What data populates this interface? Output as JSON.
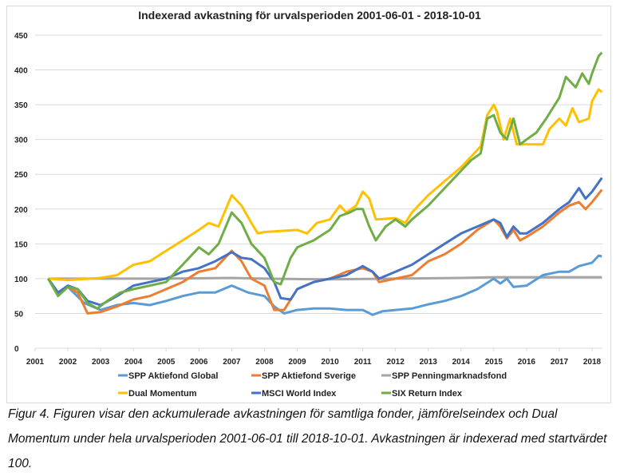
{
  "chart_data": {
    "type": "line",
    "title": "Indexerad avkastning för urvalsperioden 2001-06-01 - 2018-10-01",
    "xlabel": "",
    "ylabel": "",
    "ylim": [
      0,
      450
    ],
    "yticks": [
      0,
      50,
      100,
      150,
      200,
      250,
      300,
      350,
      400,
      450
    ],
    "xticks": [
      "2001",
      "2002",
      "2003",
      "2004",
      "2005",
      "2006",
      "2007",
      "2008",
      "2009",
      "2010",
      "2011",
      "2012",
      "2013",
      "2014",
      "2015",
      "2016",
      "2017",
      "2018"
    ],
    "grid": true,
    "legend_placement": "bottom",
    "series": [
      {
        "name": "SPP Aktiefond Global",
        "color": "#5b9bd5",
        "points": [
          [
            2001.4,
            100
          ],
          [
            2001.7,
            78
          ],
          [
            2002,
            88
          ],
          [
            2002.5,
            65
          ],
          [
            2003,
            55
          ],
          [
            2003.5,
            62
          ],
          [
            2004,
            65
          ],
          [
            2004.5,
            62
          ],
          [
            2005,
            68
          ],
          [
            2005.5,
            75
          ],
          [
            2006,
            80
          ],
          [
            2006.5,
            80
          ],
          [
            2007,
            90
          ],
          [
            2007.5,
            80
          ],
          [
            2008,
            75
          ],
          [
            2008.3,
            60
          ],
          [
            2008.6,
            50
          ],
          [
            2009,
            55
          ],
          [
            2009.5,
            57
          ],
          [
            2010,
            57
          ],
          [
            2010.5,
            55
          ],
          [
            2011,
            55
          ],
          [
            2011.3,
            48
          ],
          [
            2011.6,
            53
          ],
          [
            2012,
            55
          ],
          [
            2012.5,
            57
          ],
          [
            2013,
            63
          ],
          [
            2013.5,
            68
          ],
          [
            2014,
            75
          ],
          [
            2014.5,
            85
          ],
          [
            2015,
            100
          ],
          [
            2015.2,
            93
          ],
          [
            2015.4,
            100
          ],
          [
            2015.6,
            88
          ],
          [
            2016,
            90
          ],
          [
            2016.5,
            105
          ],
          [
            2017,
            110
          ],
          [
            2017.3,
            110
          ],
          [
            2017.6,
            118
          ],
          [
            2018,
            123
          ],
          [
            2018.2,
            133
          ],
          [
            2018.3,
            132
          ]
        ]
      },
      {
        "name": "SPP Aktiefond Sverige",
        "color": "#ed7d31",
        "points": [
          [
            2001.4,
            100
          ],
          [
            2001.7,
            78
          ],
          [
            2002,
            88
          ],
          [
            2002.3,
            80
          ],
          [
            2002.6,
            50
          ],
          [
            2003,
            52
          ],
          [
            2003.5,
            60
          ],
          [
            2004,
            70
          ],
          [
            2004.5,
            75
          ],
          [
            2005,
            85
          ],
          [
            2005.5,
            95
          ],
          [
            2006,
            110
          ],
          [
            2006.5,
            115
          ],
          [
            2007,
            140
          ],
          [
            2007.3,
            125
          ],
          [
            2007.6,
            100
          ],
          [
            2008,
            90
          ],
          [
            2008.3,
            55
          ],
          [
            2008.6,
            55
          ],
          [
            2009,
            85
          ],
          [
            2009.5,
            95
          ],
          [
            2010,
            100
          ],
          [
            2010.5,
            110
          ],
          [
            2011,
            115
          ],
          [
            2011.3,
            110
          ],
          [
            2011.5,
            95
          ],
          [
            2012,
            100
          ],
          [
            2012.5,
            105
          ],
          [
            2013,
            125
          ],
          [
            2013.5,
            135
          ],
          [
            2014,
            150
          ],
          [
            2014.5,
            170
          ],
          [
            2015,
            185
          ],
          [
            2015.2,
            175
          ],
          [
            2015.4,
            158
          ],
          [
            2015.6,
            170
          ],
          [
            2015.8,
            155
          ],
          [
            2016,
            160
          ],
          [
            2016.5,
            175
          ],
          [
            2017,
            195
          ],
          [
            2017.3,
            205
          ],
          [
            2017.6,
            210
          ],
          [
            2017.8,
            200
          ],
          [
            2018,
            210
          ],
          [
            2018.3,
            228
          ]
        ]
      },
      {
        "name": "SPP Penningmarknadsfond",
        "color": "#a5a5a5",
        "points": [
          [
            2001.4,
            100
          ],
          [
            2003.5,
            100
          ],
          [
            2005,
            100
          ],
          [
            2007,
            101
          ],
          [
            2008,
            100
          ],
          [
            2010,
            99
          ],
          [
            2012,
            100
          ],
          [
            2014,
            101
          ],
          [
            2015,
            102
          ],
          [
            2016,
            102
          ],
          [
            2018.3,
            102
          ]
        ]
      },
      {
        "name": "Dual Momentum",
        "color": "#ffc000",
        "points": [
          [
            2001.4,
            100
          ],
          [
            2002,
            98
          ],
          [
            2003,
            101
          ],
          [
            2003.5,
            105
          ],
          [
            2004,
            120
          ],
          [
            2004.5,
            125
          ],
          [
            2005,
            140
          ],
          [
            2005.5,
            155
          ],
          [
            2006,
            170
          ],
          [
            2006.3,
            180
          ],
          [
            2006.6,
            175
          ],
          [
            2007,
            220
          ],
          [
            2007.3,
            205
          ],
          [
            2007.6,
            180
          ],
          [
            2007.8,
            165
          ],
          [
            2008,
            167
          ],
          [
            2009,
            170
          ],
          [
            2009.3,
            165
          ],
          [
            2009.6,
            180
          ],
          [
            2010,
            185
          ],
          [
            2010.3,
            205
          ],
          [
            2010.5,
            195
          ],
          [
            2010.8,
            205
          ],
          [
            2011,
            225
          ],
          [
            2011.2,
            215
          ],
          [
            2011.4,
            185
          ],
          [
            2012,
            187
          ],
          [
            2012.3,
            180
          ],
          [
            2012.5,
            195
          ],
          [
            2013,
            220
          ],
          [
            2013.5,
            240
          ],
          [
            2014,
            260
          ],
          [
            2014.3,
            275
          ],
          [
            2014.6,
            290
          ],
          [
            2014.8,
            335
          ],
          [
            2015,
            350
          ],
          [
            2015.1,
            340
          ],
          [
            2015.3,
            300
          ],
          [
            2015.5,
            330
          ],
          [
            2015.7,
            293
          ],
          [
            2016,
            293
          ],
          [
            2016.5,
            293
          ],
          [
            2016.7,
            315
          ],
          [
            2017,
            330
          ],
          [
            2017.2,
            320
          ],
          [
            2017.4,
            345
          ],
          [
            2017.6,
            325
          ],
          [
            2017.9,
            330
          ],
          [
            2018,
            355
          ],
          [
            2018.2,
            372
          ],
          [
            2018.3,
            368
          ]
        ]
      },
      {
        "name": "MSCI World Index",
        "color": "#4472c4",
        "points": [
          [
            2001.4,
            100
          ],
          [
            2001.7,
            80
          ],
          [
            2002,
            90
          ],
          [
            2002.3,
            85
          ],
          [
            2002.6,
            68
          ],
          [
            2003,
            62
          ],
          [
            2003.5,
            75
          ],
          [
            2004,
            90
          ],
          [
            2004.5,
            95
          ],
          [
            2005,
            100
          ],
          [
            2005.5,
            110
          ],
          [
            2006,
            115
          ],
          [
            2006.5,
            125
          ],
          [
            2007,
            138
          ],
          [
            2007.3,
            130
          ],
          [
            2007.6,
            128
          ],
          [
            2008,
            115
          ],
          [
            2008.3,
            95
          ],
          [
            2008.5,
            72
          ],
          [
            2008.8,
            70
          ],
          [
            2009,
            85
          ],
          [
            2009.5,
            95
          ],
          [
            2010,
            100
          ],
          [
            2010.5,
            105
          ],
          [
            2011,
            118
          ],
          [
            2011.3,
            110
          ],
          [
            2011.5,
            100
          ],
          [
            2012,
            110
          ],
          [
            2012.5,
            120
          ],
          [
            2013,
            135
          ],
          [
            2013.5,
            150
          ],
          [
            2014,
            165
          ],
          [
            2014.5,
            175
          ],
          [
            2015,
            185
          ],
          [
            2015.2,
            180
          ],
          [
            2015.4,
            160
          ],
          [
            2015.6,
            175
          ],
          [
            2015.8,
            165
          ],
          [
            2016,
            165
          ],
          [
            2016.5,
            180
          ],
          [
            2017,
            200
          ],
          [
            2017.3,
            210
          ],
          [
            2017.6,
            230
          ],
          [
            2017.8,
            215
          ],
          [
            2018,
            225
          ],
          [
            2018.3,
            245
          ]
        ]
      },
      {
        "name": "SIX Return Index",
        "color": "#70ad47",
        "points": [
          [
            2001.4,
            100
          ],
          [
            2001.7,
            75
          ],
          [
            2002,
            88
          ],
          [
            2002.3,
            85
          ],
          [
            2002.6,
            65
          ],
          [
            2002.9,
            57
          ],
          [
            2003.2,
            68
          ],
          [
            2003.6,
            80
          ],
          [
            2004,
            85
          ],
          [
            2004.5,
            90
          ],
          [
            2005,
            95
          ],
          [
            2005.5,
            120
          ],
          [
            2006,
            145
          ],
          [
            2006.3,
            135
          ],
          [
            2006.6,
            150
          ],
          [
            2007,
            195
          ],
          [
            2007.3,
            180
          ],
          [
            2007.6,
            150
          ],
          [
            2008,
            130
          ],
          [
            2008.3,
            95
          ],
          [
            2008.5,
            92
          ],
          [
            2008.8,
            130
          ],
          [
            2009,
            145
          ],
          [
            2009.5,
            155
          ],
          [
            2010,
            170
          ],
          [
            2010.3,
            190
          ],
          [
            2010.6,
            195
          ],
          [
            2010.8,
            200
          ],
          [
            2011,
            200
          ],
          [
            2011.2,
            175
          ],
          [
            2011.4,
            155
          ],
          [
            2011.7,
            175
          ],
          [
            2012,
            185
          ],
          [
            2012.3,
            175
          ],
          [
            2012.5,
            185
          ],
          [
            2013,
            205
          ],
          [
            2013.5,
            230
          ],
          [
            2014,
            255
          ],
          [
            2014.3,
            270
          ],
          [
            2014.6,
            280
          ],
          [
            2014.8,
            330
          ],
          [
            2015,
            335
          ],
          [
            2015.2,
            310
          ],
          [
            2015.4,
            300
          ],
          [
            2015.6,
            330
          ],
          [
            2015.8,
            293
          ],
          [
            2016,
            300
          ],
          [
            2016.3,
            310
          ],
          [
            2016.6,
            330
          ],
          [
            2017,
            360
          ],
          [
            2017.2,
            390
          ],
          [
            2017.5,
            375
          ],
          [
            2017.7,
            395
          ],
          [
            2017.9,
            380
          ],
          [
            2018,
            395
          ],
          [
            2018.2,
            420
          ],
          [
            2018.3,
            425
          ]
        ]
      }
    ]
  },
  "caption": {
    "line1": "Figur 4. Figuren visar den ackumulerade avkastningen för samtliga fonder, jämförelseindex och Dual",
    "line2": "Momentum under hela urvalsperioden 2001-06-01 till 2018-10-01. Avkastningen är indexerad med startvärdet",
    "line3": "100."
  }
}
